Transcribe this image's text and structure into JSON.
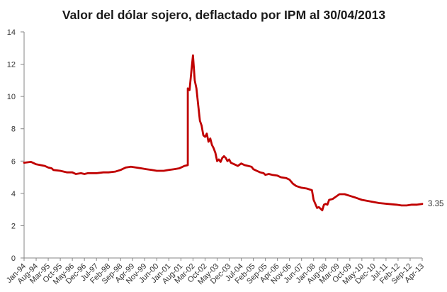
{
  "chart_data": {
    "type": "line",
    "title": "Valor del dólar sojero, deflactado por IPM al 30/04/2013",
    "xlabel": "",
    "ylabel": "",
    "ylim": [
      0,
      14
    ],
    "yticks": [
      "0",
      "2",
      "4",
      "6",
      "8",
      "10",
      "12",
      "14"
    ],
    "grid": false,
    "legend": "none",
    "line_color": "#c00000",
    "end_label": "3.35",
    "x_ticks": [
      "Jan-94",
      "Aug-94",
      "Mar-95",
      "Oct-95",
      "May-96",
      "Dec-96",
      "Jul-97",
      "Feb-98",
      "Sep-98",
      "Apr-99",
      "Nov-99",
      "Jun-00",
      "Jan-01",
      "Aug-01",
      "Mar-02",
      "Oct-02",
      "May-03",
      "Dec-03",
      "Jul-04",
      "Feb-05",
      "Sep-05",
      "Apr-06",
      "Nov-06",
      "Jun-07",
      "Jan-08",
      "Aug-08",
      "Mar-09",
      "Oct-09",
      "May-10",
      "Dec-10",
      "Jul-11",
      "Feb-12",
      "Sep-12",
      "Apr-13"
    ],
    "x_range": [
      "1994-01",
      "2013-04"
    ],
    "series": [
      {
        "points": [
          [
            "1994-01",
            5.9
          ],
          [
            "1994-05",
            5.95
          ],
          [
            "1994-08",
            5.8
          ],
          [
            "1995-01",
            5.7
          ],
          [
            "1995-03",
            5.6
          ],
          [
            "1995-05",
            5.55
          ],
          [
            "1995-06",
            5.45
          ],
          [
            "1995-10",
            5.4
          ],
          [
            "1996-02",
            5.3
          ],
          [
            "1996-05",
            5.3
          ],
          [
            "1996-07",
            5.2
          ],
          [
            "1996-10",
            5.25
          ],
          [
            "1996-12",
            5.2
          ],
          [
            "1997-02",
            5.25
          ],
          [
            "1997-07",
            5.25
          ],
          [
            "1997-11",
            5.3
          ],
          [
            "1998-02",
            5.3
          ],
          [
            "1998-06",
            5.35
          ],
          [
            "1998-09",
            5.45
          ],
          [
            "1998-12",
            5.6
          ],
          [
            "1999-03",
            5.65
          ],
          [
            "1999-06",
            5.6
          ],
          [
            "1999-09",
            5.55
          ],
          [
            "1999-12",
            5.5
          ],
          [
            "2000-03",
            5.45
          ],
          [
            "2000-06",
            5.4
          ],
          [
            "2000-10",
            5.4
          ],
          [
            "2001-01",
            5.45
          ],
          [
            "2001-04",
            5.5
          ],
          [
            "2001-07",
            5.55
          ],
          [
            "2001-10",
            5.7
          ],
          [
            "2001-12",
            5.75
          ],
          [
            "2001-12",
            10.5
          ],
          [
            "2002-01",
            10.4
          ],
          [
            "2002-02",
            11.5
          ],
          [
            "2002-03",
            12.55
          ],
          [
            "2002-04",
            11.0
          ],
          [
            "2002-05",
            10.5
          ],
          [
            "2002-06",
            9.5
          ],
          [
            "2002-07",
            8.5
          ],
          [
            "2002-08",
            8.2
          ],
          [
            "2002-09",
            7.6
          ],
          [
            "2002-10",
            7.5
          ],
          [
            "2002-11",
            7.7
          ],
          [
            "2002-12",
            7.2
          ],
          [
            "2003-01",
            7.4
          ],
          [
            "2003-02",
            7.0
          ],
          [
            "2003-03",
            6.8
          ],
          [
            "2003-04",
            6.5
          ],
          [
            "2003-05",
            6.0
          ],
          [
            "2003-06",
            6.1
          ],
          [
            "2003-07",
            5.95
          ],
          [
            "2003-08",
            6.2
          ],
          [
            "2003-09",
            6.3
          ],
          [
            "2003-10",
            6.2
          ],
          [
            "2003-11",
            6.0
          ],
          [
            "2003-12",
            6.1
          ],
          [
            "2004-01",
            5.9
          ],
          [
            "2004-03",
            5.8
          ],
          [
            "2004-05",
            5.7
          ],
          [
            "2004-07",
            5.85
          ],
          [
            "2004-09",
            5.75
          ],
          [
            "2004-11",
            5.7
          ],
          [
            "2005-01",
            5.65
          ],
          [
            "2005-02",
            5.5
          ],
          [
            "2005-04",
            5.4
          ],
          [
            "2005-06",
            5.3
          ],
          [
            "2005-08",
            5.25
          ],
          [
            "2005-09",
            5.15
          ],
          [
            "2005-11",
            5.2
          ],
          [
            "2006-01",
            5.15
          ],
          [
            "2006-04",
            5.1
          ],
          [
            "2006-06",
            5.0
          ],
          [
            "2006-09",
            4.95
          ],
          [
            "2006-11",
            4.85
          ],
          [
            "2007-01",
            4.6
          ],
          [
            "2007-03",
            4.45
          ],
          [
            "2007-06",
            4.35
          ],
          [
            "2007-09",
            4.3
          ],
          [
            "2007-12",
            4.2
          ],
          [
            "2008-01",
            3.6
          ],
          [
            "2008-03",
            3.1
          ],
          [
            "2008-04",
            3.15
          ],
          [
            "2008-05",
            3.05
          ],
          [
            "2008-06",
            2.95
          ],
          [
            "2008-07",
            3.3
          ],
          [
            "2008-08",
            3.35
          ],
          [
            "2008-09",
            3.3
          ],
          [
            "2008-10",
            3.6
          ],
          [
            "2008-12",
            3.65
          ],
          [
            "2009-02",
            3.8
          ],
          [
            "2009-04",
            3.95
          ],
          [
            "2009-07",
            3.95
          ],
          [
            "2009-10",
            3.85
          ],
          [
            "2010-01",
            3.75
          ],
          [
            "2010-05",
            3.6
          ],
          [
            "2010-10",
            3.5
          ],
          [
            "2011-03",
            3.4
          ],
          [
            "2011-08",
            3.35
          ],
          [
            "2012-01",
            3.3
          ],
          [
            "2012-04",
            3.25
          ],
          [
            "2012-07",
            3.25
          ],
          [
            "2012-10",
            3.3
          ],
          [
            "2013-01",
            3.3
          ],
          [
            "2013-04",
            3.35
          ]
        ]
      }
    ]
  }
}
